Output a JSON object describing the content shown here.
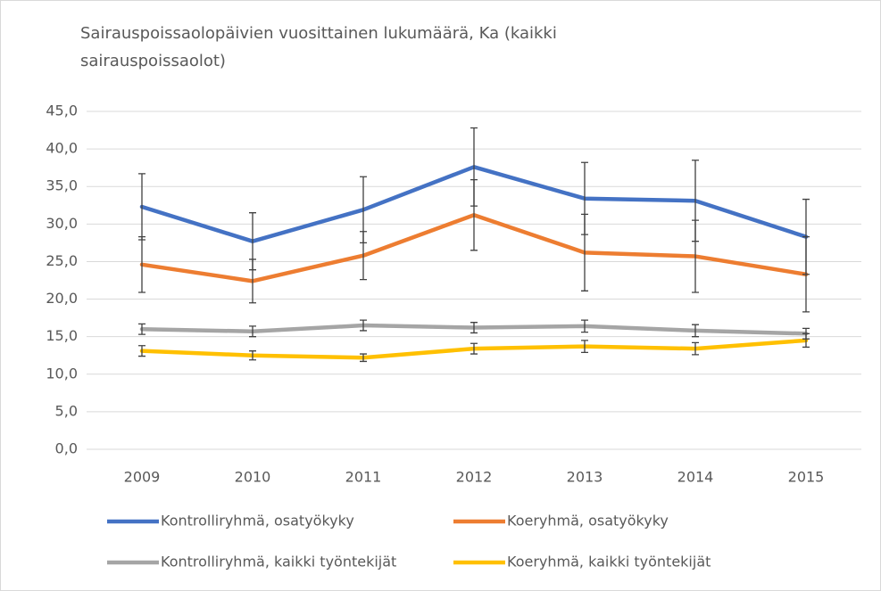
{
  "chart_data": {
    "type": "line",
    "title": "Sairauspoissaolopäivien vuosittainen lukumäärä, Ka (kaikki sairauspoissaolot)",
    "categories": [
      "2009",
      "2010",
      "2011",
      "2012",
      "2013",
      "2014",
      "2015"
    ],
    "series": [
      {
        "name": "Kontrolliryhmä, osatyökyky",
        "color": "#4472c4",
        "values": [
          32.3,
          27.7,
          31.9,
          37.6,
          33.4,
          33.1,
          28.3
        ],
        "errors": [
          4.4,
          3.8,
          4.4,
          5.2,
          4.8,
          5.4,
          5.0
        ]
      },
      {
        "name": "Koeryhmä, osatyökyky",
        "color": "#ed7d31",
        "values": [
          24.6,
          22.4,
          25.8,
          31.2,
          26.2,
          25.7,
          23.3
        ],
        "errors": [
          3.7,
          2.9,
          3.2,
          4.7,
          5.1,
          4.8,
          5.0
        ]
      },
      {
        "name": "Kontrolliryhmä, kaikki työntekijät",
        "color": "#a5a5a5",
        "values": [
          16.0,
          15.7,
          16.5,
          16.2,
          16.4,
          15.8,
          15.4
        ],
        "errors": [
          0.7,
          0.7,
          0.7,
          0.7,
          0.8,
          0.8,
          0.7
        ]
      },
      {
        "name": "Koeryhmä, kaikki työntekijät",
        "color": "#ffc000",
        "values": [
          13.1,
          12.5,
          12.2,
          13.4,
          13.7,
          13.4,
          14.5
        ],
        "errors": [
          0.7,
          0.6,
          0.5,
          0.7,
          0.8,
          0.8,
          0.9
        ]
      }
    ],
    "ylim": [
      0,
      45
    ],
    "yticks": [
      {
        "value": 0,
        "label": "0,0"
      },
      {
        "value": 5,
        "label": "5,0"
      },
      {
        "value": 10,
        "label": "10,0"
      },
      {
        "value": 15,
        "label": "15,0"
      },
      {
        "value": 20,
        "label": "20,0"
      },
      {
        "value": 25,
        "label": "25,0"
      },
      {
        "value": 30,
        "label": "30,0"
      },
      {
        "value": 35,
        "label": "35,0"
      },
      {
        "value": 40,
        "label": "40,0"
      },
      {
        "value": 45,
        "label": "45,0"
      }
    ],
    "grid": true,
    "legend": "bottom"
  }
}
